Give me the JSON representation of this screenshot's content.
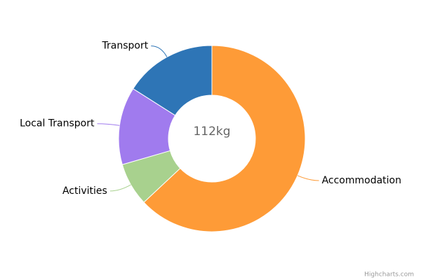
{
  "chart_data": {
    "type": "donut",
    "center_label": "112kg",
    "credits": "Highcharts.com",
    "categories": [
      "Accommodation",
      "Activities",
      "Local Transport",
      "Transport"
    ],
    "values": [
      63,
      7.5,
      13.5,
      16
    ],
    "colors": [
      "#fe9b37",
      "#a8d18e",
      "#a07bee",
      "#2e75b6"
    ]
  }
}
